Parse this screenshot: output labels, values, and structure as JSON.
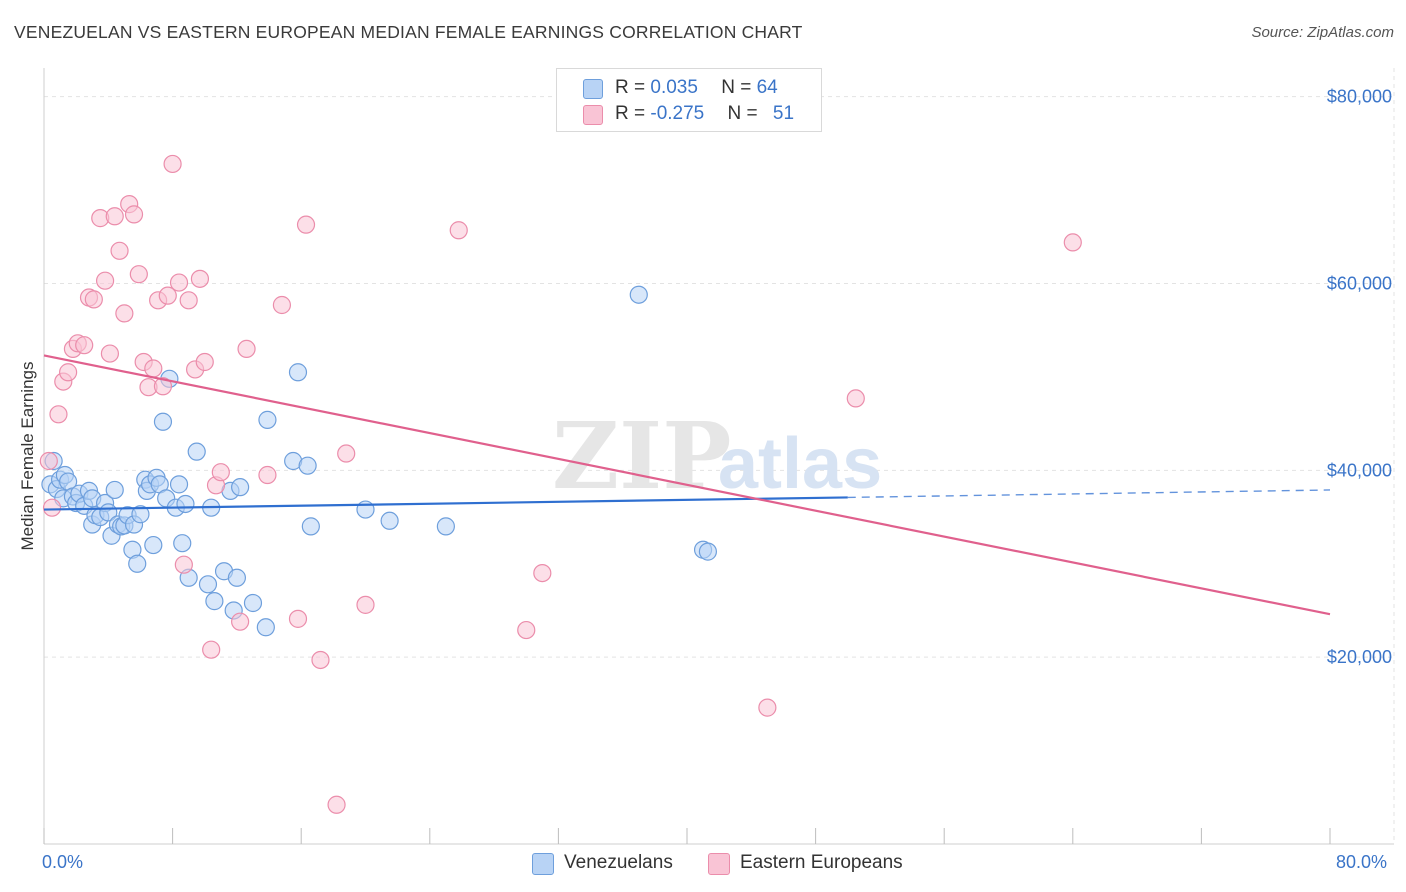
{
  "title": "VENEZUELAN VS EASTERN EUROPEAN MEDIAN FEMALE EARNINGS CORRELATION CHART",
  "source": "Source: ZipAtlas.com",
  "watermark": {
    "zip": "ZIP",
    "atlas": "atlas"
  },
  "legend": {
    "rows": [
      {
        "r_label": "R = ",
        "r_value": "0.035",
        "n_label": "N = ",
        "n_value": "64"
      },
      {
        "r_label": "R = ",
        "r_value": "-0.275",
        "n_label": "N = ",
        "n_value": "51"
      }
    ]
  },
  "bottom_legend": {
    "venezuelans": "Venezuelans",
    "eastern_europeans": "Eastern Europeans"
  },
  "axis": {
    "x_min_label": "0.0%",
    "x_max_label": "80.0%",
    "y_title": "Median Female Earnings"
  },
  "colors": {
    "venezuelans_fill": "#b8d3f5",
    "venezuelans_stroke": "#6e9fdc",
    "venezuelans_line": "#2f6fd0",
    "eastern_fill": "#f9c4d5",
    "eastern_stroke": "#eb8dab",
    "eastern_line": "#e0608d",
    "accent_text": "#3a74c8",
    "grid": "#e3e3e3"
  },
  "chart_data": {
    "type": "scatter",
    "title": "VENEZUELAN VS EASTERN EUROPEAN MEDIAN FEMALE EARNINGS CORRELATION CHART",
    "xlabel": "",
    "ylabel": "Median Female Earnings",
    "xlim": [
      0,
      80
    ],
    "ylim": [
      0,
      82000
    ],
    "y_ticks": [
      {
        "value": 20000,
        "label": "$20,000"
      },
      {
        "value": 40000,
        "label": "$40,000"
      },
      {
        "value": 60000,
        "label": "$60,000"
      },
      {
        "value": 80000,
        "label": "$80,000"
      }
    ],
    "x_ticks": [
      0,
      8,
      16,
      24,
      32,
      40,
      48,
      56,
      64,
      72,
      80
    ],
    "grid": true,
    "series": [
      {
        "name": "Venezuelans",
        "r": 0.035,
        "n": 64,
        "trend": {
          "x0": 0,
          "y0": 35800,
          "x1": 50,
          "y1": 37100,
          "dashed_to_x": 80,
          "dashed_to_y": 37900
        },
        "points": [
          [
            0.4,
            38500
          ],
          [
            0.6,
            41000
          ],
          [
            0.8,
            38000
          ],
          [
            1.0,
            39000
          ],
          [
            1.2,
            37000
          ],
          [
            1.3,
            39500
          ],
          [
            1.5,
            38800
          ],
          [
            1.8,
            37200
          ],
          [
            2.0,
            36500
          ],
          [
            2.2,
            37500
          ],
          [
            2.5,
            36200
          ],
          [
            2.8,
            37800
          ],
          [
            3.0,
            37000
          ],
          [
            3.0,
            34200
          ],
          [
            3.2,
            35200
          ],
          [
            3.5,
            35000
          ],
          [
            3.8,
            36500
          ],
          [
            4.0,
            35500
          ],
          [
            4.2,
            33000
          ],
          [
            4.4,
            37900
          ],
          [
            4.6,
            34200
          ],
          [
            4.8,
            34000
          ],
          [
            5.0,
            34100
          ],
          [
            5.2,
            35200
          ],
          [
            5.5,
            31500
          ],
          [
            5.6,
            34200
          ],
          [
            5.8,
            30000
          ],
          [
            6.0,
            35300
          ],
          [
            6.3,
            39000
          ],
          [
            6.4,
            37800
          ],
          [
            6.6,
            38500
          ],
          [
            6.8,
            32000
          ],
          [
            7.0,
            39200
          ],
          [
            7.2,
            38500
          ],
          [
            7.4,
            45200
          ],
          [
            7.6,
            37000
          ],
          [
            7.8,
            49800
          ],
          [
            8.2,
            36000
          ],
          [
            8.4,
            38500
          ],
          [
            8.6,
            32200
          ],
          [
            8.8,
            36400
          ],
          [
            9.0,
            28500
          ],
          [
            9.5,
            42000
          ],
          [
            10.2,
            27800
          ],
          [
            10.4,
            36000
          ],
          [
            10.6,
            26000
          ],
          [
            11.2,
            29200
          ],
          [
            11.6,
            37800
          ],
          [
            11.8,
            25000
          ],
          [
            12.0,
            28500
          ],
          [
            12.2,
            38200
          ],
          [
            13.0,
            25800
          ],
          [
            13.8,
            23200
          ],
          [
            13.9,
            45400
          ],
          [
            15.5,
            41000
          ],
          [
            15.8,
            50500
          ],
          [
            16.4,
            40500
          ],
          [
            16.6,
            34000
          ],
          [
            20.0,
            35800
          ],
          [
            21.5,
            34600
          ],
          [
            25.0,
            34000
          ],
          [
            37.0,
            58800
          ],
          [
            41.0,
            31500
          ],
          [
            41.3,
            31300
          ]
        ]
      },
      {
        "name": "Eastern Europeans",
        "r": -0.275,
        "n": 51,
        "trend": {
          "x0": 0,
          "y0": 52300,
          "x1": 80,
          "y1": 24600
        },
        "points": [
          [
            0.3,
            41000
          ],
          [
            0.5,
            36000
          ],
          [
            0.9,
            46000
          ],
          [
            1.2,
            49500
          ],
          [
            1.5,
            50500
          ],
          [
            1.8,
            53000
          ],
          [
            2.1,
            53600
          ],
          [
            2.5,
            53400
          ],
          [
            2.8,
            58500
          ],
          [
            3.1,
            58300
          ],
          [
            3.5,
            67000
          ],
          [
            3.8,
            60300
          ],
          [
            4.1,
            52500
          ],
          [
            4.4,
            67200
          ],
          [
            4.7,
            63500
          ],
          [
            5.0,
            56800
          ],
          [
            5.3,
            68500
          ],
          [
            5.6,
            67400
          ],
          [
            5.9,
            61000
          ],
          [
            6.2,
            51600
          ],
          [
            6.5,
            48900
          ],
          [
            6.8,
            50900
          ],
          [
            7.1,
            58200
          ],
          [
            7.4,
            49000
          ],
          [
            7.7,
            58700
          ],
          [
            8.0,
            72800
          ],
          [
            8.4,
            60100
          ],
          [
            8.7,
            29900
          ],
          [
            9.0,
            58200
          ],
          [
            9.4,
            50800
          ],
          [
            9.7,
            60500
          ],
          [
            10.0,
            51600
          ],
          [
            10.4,
            20800
          ],
          [
            10.7,
            38400
          ],
          [
            11.0,
            39800
          ],
          [
            12.2,
            23800
          ],
          [
            12.6,
            53000
          ],
          [
            13.9,
            39500
          ],
          [
            14.8,
            57700
          ],
          [
            15.8,
            24100
          ],
          [
            16.3,
            66300
          ],
          [
            17.2,
            19700
          ],
          [
            18.2,
            4200
          ],
          [
            18.8,
            41800
          ],
          [
            20.0,
            25600
          ],
          [
            25.8,
            65700
          ],
          [
            30.0,
            22900
          ],
          [
            31.0,
            29000
          ],
          [
            45.0,
            14600
          ],
          [
            50.5,
            47700
          ],
          [
            64.0,
            64400
          ]
        ]
      }
    ]
  }
}
